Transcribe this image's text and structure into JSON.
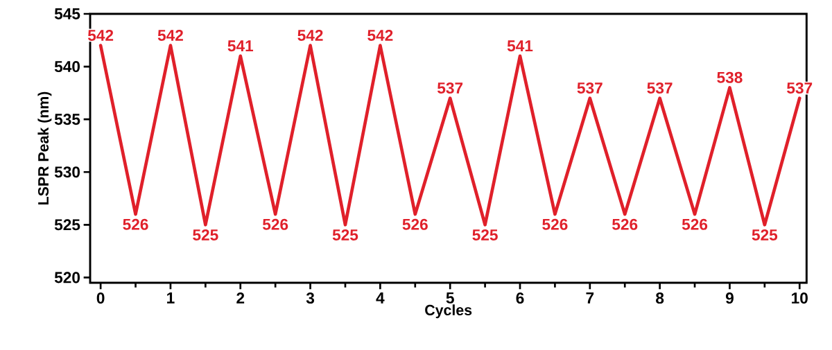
{
  "chart_data": {
    "type": "line",
    "xlabel": "Cycles",
    "ylabel": "LSPR Peak (nm)",
    "x": [
      0,
      0.5,
      1,
      1.5,
      2,
      2.5,
      3,
      3.5,
      4,
      4.5,
      5,
      5.5,
      6,
      6.5,
      7,
      7.5,
      8,
      8.5,
      9,
      9.5,
      10
    ],
    "series": [
      {
        "color": "#e0202a",
        "values": [
          542,
          526,
          542,
          525,
          541,
          526,
          542,
          525,
          542,
          526,
          537,
          525,
          541,
          526,
          537,
          526,
          537,
          526,
          538,
          525,
          537
        ],
        "value_labels": [
          "542",
          "526",
          "542",
          "525",
          "541",
          "526",
          "542",
          "525",
          "542",
          "526",
          "537",
          "525",
          "541",
          "526",
          "537",
          "526",
          "537",
          "526",
          "538",
          "525",
          "537"
        ]
      }
    ],
    "xlim": [
      -0.15,
      10.1
    ],
    "xticks": [
      0,
      1,
      2,
      3,
      4,
      5,
      6,
      7,
      8,
      9,
      10
    ],
    "ylim": [
      519.5,
      545
    ],
    "yticks": [
      520,
      525,
      530,
      535,
      540,
      545
    ],
    "grid": false,
    "marker": "none",
    "line_style": "solid"
  }
}
